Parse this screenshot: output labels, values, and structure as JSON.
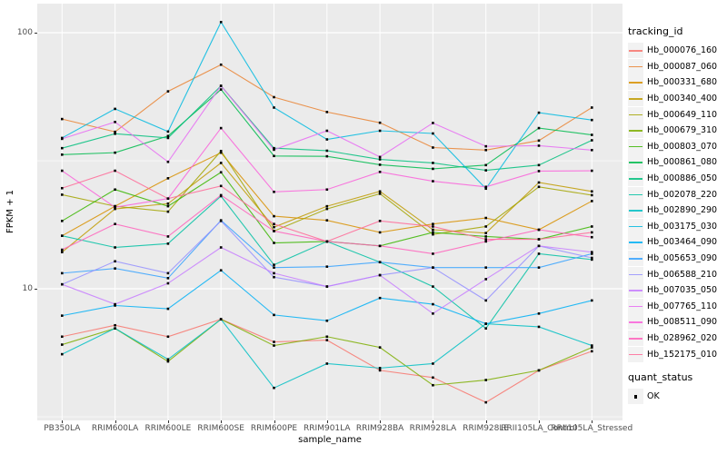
{
  "figure": {
    "panel_bg": "#EBEBEB",
    "grid_color": "#FFFFFF",
    "tick_text_color": "#4D4D4D",
    "point_color": "#000000"
  },
  "axis": {
    "y_title": "FPKM + 1",
    "x_title": "sample_name",
    "y_ticks": [
      "100",
      "10"
    ]
  },
  "legend": {
    "tracking_title": "tracking_id",
    "quant_title": "quant_status",
    "quant_items": [
      {
        "label": "OK",
        "marker": "black-square"
      }
    ]
  },
  "chart_data": {
    "type": "line",
    "x_axis": "sample_name",
    "y_axis": "FPKM + 1",
    "y_scale": "log10",
    "ylim": [
      3.05,
      130
    ],
    "y_major_gridlines": [
      100,
      10
    ],
    "y_minor_gridlines": [
      31.6,
      3.16
    ],
    "grid": "on",
    "legend_position": "right",
    "point_marker": "small black square (quant_status = OK at every point)",
    "categories": [
      "PB350LA",
      "RRIM600LA",
      "RRIM600LE",
      "RRIM600SE",
      "RRIM600PE",
      "RRIM901LA",
      "RRIM928BA",
      "RRIM928LA",
      "RRIM928LE",
      "RRII105LA_Control",
      "RRII105LA_Stressed"
    ],
    "series": [
      {
        "name": "Hb_000076_160",
        "color": "#F8766D",
        "values": [
          6.5,
          7.2,
          6.5,
          7.6,
          6.2,
          6.3,
          4.8,
          4.5,
          3.6,
          4.8,
          5.7
        ]
      },
      {
        "name": "Hb_000087_060",
        "color": "#EA8331",
        "values": [
          46,
          41,
          59,
          75,
          56,
          49,
          44.5,
          35.6,
          34.8,
          37.9,
          51
        ]
      },
      {
        "name": "Hb_000331_680",
        "color": "#D89000",
        "values": [
          16.1,
          21,
          27,
          34,
          19.2,
          18.5,
          16.6,
          17.9,
          18.9,
          17,
          22
        ]
      },
      {
        "name": "Hb_000340_400",
        "color": "#C09B00",
        "values": [
          13.9,
          20.5,
          21.5,
          31,
          17.4,
          21,
          24,
          17,
          16.5,
          26,
          24
        ]
      },
      {
        "name": "Hb_000649_110",
        "color": "#A3A500",
        "values": [
          23.3,
          21,
          20,
          34.5,
          16.8,
          20.5,
          23.5,
          16.3,
          17.5,
          25,
          23.2
        ]
      },
      {
        "name": "Hb_000679_310",
        "color": "#7CAE00",
        "values": [
          6.05,
          7,
          5.2,
          7.6,
          6,
          6.5,
          5.9,
          4.2,
          4.4,
          4.8,
          5.9
        ]
      },
      {
        "name": "Hb_000803_070",
        "color": "#39B600",
        "values": [
          18.4,
          24.4,
          21,
          28.5,
          15.1,
          15.3,
          14.7,
          16.6,
          16,
          15.6,
          17.5
        ]
      },
      {
        "name": "Hb_000861_080",
        "color": "#00BB4E",
        "values": [
          33.4,
          34,
          39.5,
          60,
          33,
          32.9,
          30.5,
          29.4,
          30.4,
          42.4,
          39.9
        ]
      },
      {
        "name": "Hb_000886_050",
        "color": "#00BF7D",
        "values": [
          35.4,
          40.3,
          38.8,
          62,
          35.4,
          34.6,
          32,
          31,
          29,
          30.4,
          38
        ]
      },
      {
        "name": "Hb_002078_220",
        "color": "#00C1A3",
        "values": [
          16.1,
          14.5,
          15,
          23,
          12.4,
          15.3,
          12.7,
          10.2,
          7,
          13.7,
          13
        ]
      },
      {
        "name": "Hb_002890_290",
        "color": "#00BFC4",
        "values": [
          5.55,
          7,
          5.3,
          7.6,
          4.1,
          5.1,
          4.9,
          5.1,
          7.3,
          7.1,
          6
        ]
      },
      {
        "name": "Hb_003175_030",
        "color": "#00BAE0",
        "values": [
          38.8,
          50.4,
          41.1,
          110,
          51,
          38.3,
          41.4,
          40.4,
          24.6,
          48.7,
          45.6
        ]
      },
      {
        "name": "Hb_003464_090",
        "color": "#00B0F6",
        "values": [
          7.85,
          8.6,
          8.35,
          11.8,
          7.9,
          7.5,
          9.2,
          8.7,
          7.3,
          8,
          9
        ]
      },
      {
        "name": "Hb_005653_090",
        "color": "#35A2FF",
        "values": [
          11.5,
          12,
          11,
          18.5,
          12.1,
          12.2,
          12.7,
          12.1,
          12.1,
          12.1,
          13.7
        ]
      },
      {
        "name": "Hb_006588_210",
        "color": "#9590FF",
        "values": [
          10.4,
          12.8,
          11.5,
          18.4,
          11.1,
          10.2,
          11.3,
          12.1,
          9,
          14.7,
          13.2
        ]
      },
      {
        "name": "Hb_007035_050",
        "color": "#C77CFF",
        "values": [
          10.4,
          8.7,
          10.5,
          14.5,
          11.5,
          10.2,
          11.3,
          8,
          10.9,
          14.7,
          13.9
        ]
      },
      {
        "name": "Hb_007765_110",
        "color": "#E76BF3",
        "values": [
          38.5,
          44.8,
          31.3,
          62,
          34.9,
          41.4,
          32.7,
          44.4,
          36,
          36.2,
          34.8
        ]
      },
      {
        "name": "Hb_008511_090",
        "color": "#FA62DB",
        "values": [
          28.9,
          20.8,
          22.5,
          42.4,
          23.9,
          24.4,
          28.6,
          26.3,
          25,
          28.8,
          28.9
        ]
      },
      {
        "name": "Hb_028962_020",
        "color": "#FF62BC",
        "values": [
          14.2,
          17.9,
          16,
          23.2,
          16.8,
          15.3,
          14.7,
          13.7,
          15.3,
          17,
          15.9
        ]
      },
      {
        "name": "Hb_152175_010",
        "color": "#FF6A98",
        "values": [
          24.7,
          28.9,
          22.5,
          25.2,
          17.9,
          15.3,
          18.4,
          17.5,
          15.6,
          15.6,
          16.6
        ]
      }
    ]
  }
}
